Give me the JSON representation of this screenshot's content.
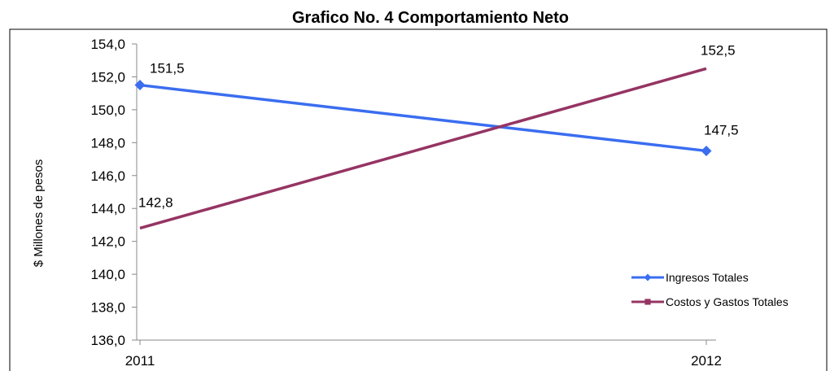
{
  "chart_data": {
    "type": "line",
    "title": "Grafico No. 4 Comportamiento Neto",
    "ylabel": "$ Millones de pesos",
    "xlabel": "",
    "categories": [
      "2011",
      "2012"
    ],
    "ylim": [
      136.0,
      154.0
    ],
    "ytick_step": 2.0,
    "ytick_labels": [
      "136,0",
      "138,0",
      "140,0",
      "142,0",
      "144,0",
      "146,0",
      "148,0",
      "150,0",
      "152,0",
      "154,0"
    ],
    "grid": false,
    "legend_position": "bottom-right",
    "series": [
      {
        "name": "Ingresos Totales",
        "values": [
          151.5,
          147.5
        ],
        "labels": [
          "151,5",
          "147,5"
        ],
        "color": "#3a6df0",
        "marker": "diamond"
      },
      {
        "name": "Costos y Gastos Totales",
        "values": [
          142.8,
          152.5
        ],
        "labels": [
          "142,8",
          "152,5"
        ],
        "color": "#953463",
        "marker": "square"
      }
    ]
  }
}
